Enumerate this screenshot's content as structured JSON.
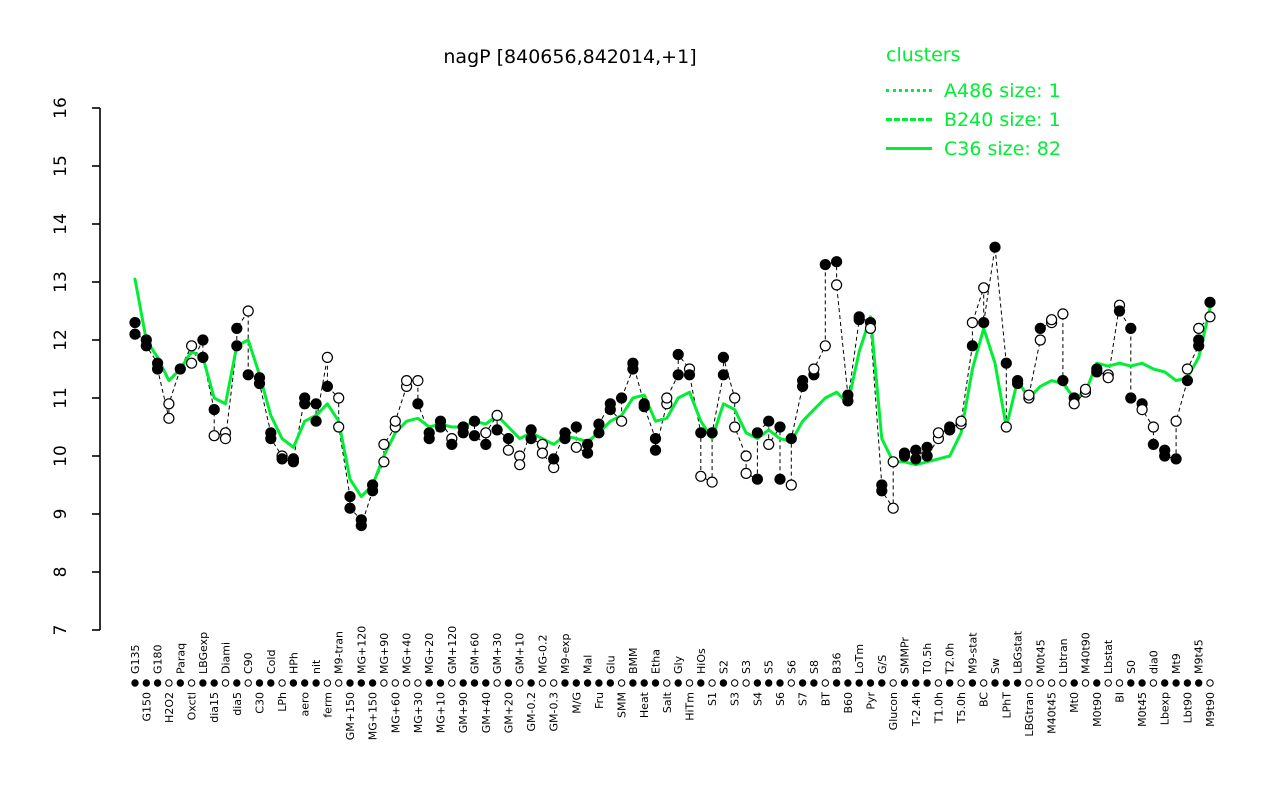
{
  "title": "nagP [840656,842014,+1]",
  "legend": {
    "title": "clusters",
    "items": [
      {
        "label": "A486 size: 1",
        "style": "dotted"
      },
      {
        "label": "B240 size: 1",
        "style": "dashed"
      },
      {
        "label": "C36 size: 82",
        "style": "solid"
      }
    ]
  },
  "colors": {
    "cluster_green": "#00ee33",
    "point_fill": "#000000",
    "point_open": "#ffffff",
    "axis": "#000000"
  },
  "chart_data": {
    "type": "line",
    "title": "nagP [840656,842014,+1]",
    "ylabel": "",
    "xlabel": "",
    "ylim": [
      7,
      16
    ],
    "y_ticks": [
      7,
      8,
      9,
      10,
      11,
      12,
      13,
      14,
      15,
      16
    ],
    "series": [
      {
        "name": "nagP expression per condition",
        "marker": "circle (open/filled)",
        "line": "dashed-black"
      },
      {
        "name": "C36 cluster mean",
        "line": "solid-green"
      }
    ],
    "conditions": [
      [
        "G135",
        [
          [
            12.3,
            0
          ],
          [
            12.1,
            0
          ]
        ],
        13.05
      ],
      [
        "G150",
        [
          [
            12.0,
            0
          ],
          [
            11.9,
            0
          ]
        ],
        12.0
      ],
      [
        "G180",
        [
          [
            11.6,
            0
          ],
          [
            11.5,
            0
          ]
        ],
        11.7
      ],
      [
        "H2O2",
        [
          [
            10.65,
            1
          ],
          [
            10.9,
            1
          ]
        ],
        11.3
      ],
      [
        "Paraq",
        [
          [
            11.5,
            0
          ]
        ],
        11.5
      ],
      [
        "Oxctl",
        [
          [
            11.9,
            1
          ],
          [
            11.6,
            1
          ]
        ],
        11.8
      ],
      [
        "LBGexp",
        [
          [
            12.0,
            0
          ],
          [
            11.7,
            0
          ]
        ],
        11.7
      ],
      [
        "dia15",
        [
          [
            10.8,
            0
          ],
          [
            10.35,
            1
          ]
        ],
        11.0
      ],
      [
        "Diami",
        [
          [
            10.4,
            1
          ],
          [
            10.3,
            1
          ]
        ],
        10.9
      ],
      [
        "dia5",
        [
          [
            11.9,
            0
          ],
          [
            12.2,
            0
          ]
        ],
        11.9
      ],
      [
        "C90",
        [
          [
            12.5,
            1
          ],
          [
            11.4,
            0
          ]
        ],
        12.0
      ],
      [
        "C30",
        [
          [
            11.35,
            0
          ],
          [
            11.25,
            0
          ]
        ],
        11.4
      ],
      [
        "Cold",
        [
          [
            10.4,
            0
          ],
          [
            10.3,
            0
          ]
        ],
        10.7
      ],
      [
        "LPh",
        [
          [
            10.0,
            1
          ],
          [
            9.95,
            0
          ]
        ],
        10.3
      ],
      [
        "HPh",
        [
          [
            9.9,
            0
          ],
          [
            9.95,
            0
          ]
        ],
        10.15
      ],
      [
        "aero",
        [
          [
            11.0,
            0
          ],
          [
            10.9,
            0
          ]
        ],
        10.6
      ],
      [
        "nit",
        [
          [
            10.9,
            0
          ],
          [
            10.6,
            0
          ]
        ],
        10.7
      ],
      [
        "ferm",
        [
          [
            11.7,
            1
          ],
          [
            11.2,
            0
          ]
        ],
        10.9
      ],
      [
        "M9-tran",
        [
          [
            11.0,
            1
          ],
          [
            10.5,
            1
          ]
        ],
        10.6
      ],
      [
        "GM+150",
        [
          [
            9.3,
            0
          ],
          [
            9.1,
            0
          ]
        ],
        9.6
      ],
      [
        "MG+120",
        [
          [
            8.9,
            0
          ],
          [
            8.8,
            0
          ]
        ],
        9.3
      ],
      [
        "MG+150",
        [
          [
            9.4,
            0
          ],
          [
            9.5,
            0
          ]
        ],
        9.5
      ],
      [
        "MG+90",
        [
          [
            9.9,
            1
          ],
          [
            10.2,
            1
          ]
        ],
        10.0
      ],
      [
        "MG+60",
        [
          [
            10.5,
            1
          ],
          [
            10.6,
            1
          ]
        ],
        10.4
      ],
      [
        "MG+40",
        [
          [
            11.2,
            1
          ],
          [
            11.3,
            1
          ]
        ],
        10.6
      ],
      [
        "MG+30",
        [
          [
            11.3,
            1
          ],
          [
            10.9,
            0
          ]
        ],
        10.65
      ],
      [
        "MG+20",
        [
          [
            10.4,
            0
          ],
          [
            10.3,
            0
          ]
        ],
        10.5
      ],
      [
        "MG+10",
        [
          [
            10.5,
            0
          ],
          [
            10.6,
            0
          ]
        ],
        10.55
      ],
      [
        "GM+120",
        [
          [
            10.3,
            1
          ],
          [
            10.2,
            0
          ]
        ],
        10.5
      ],
      [
        "GM+90",
        [
          [
            10.4,
            0
          ],
          [
            10.5,
            0
          ]
        ],
        10.5
      ],
      [
        "GM+60",
        [
          [
            10.6,
            0
          ],
          [
            10.35,
            0
          ]
        ],
        10.6
      ],
      [
        "GM+40",
        [
          [
            10.2,
            0
          ],
          [
            10.4,
            1
          ]
        ],
        10.55
      ],
      [
        "GM+30",
        [
          [
            10.7,
            1
          ],
          [
            10.45,
            0
          ]
        ],
        10.7
      ],
      [
        "GM+20",
        [
          [
            10.3,
            0
          ],
          [
            10.1,
            1
          ]
        ],
        10.5
      ],
      [
        "GM+10",
        [
          [
            10.0,
            1
          ],
          [
            9.85,
            1
          ]
        ],
        10.3
      ],
      [
        "GM-0.2",
        [
          [
            10.45,
            0
          ],
          [
            10.3,
            0
          ]
        ],
        10.4
      ],
      [
        "MG-0.2",
        [
          [
            10.2,
            1
          ],
          [
            10.05,
            1
          ]
        ],
        10.3
      ],
      [
        "GM-0.3",
        [
          [
            9.8,
            1
          ],
          [
            9.95,
            0
          ]
        ],
        10.2
      ],
      [
        "M9-exp",
        [
          [
            10.4,
            0
          ],
          [
            10.3,
            0
          ]
        ],
        10.35
      ],
      [
        "M/G",
        [
          [
            10.5,
            0
          ],
          [
            10.15,
            1
          ]
        ],
        10.3
      ],
      [
        "Mal",
        [
          [
            10.05,
            0
          ],
          [
            10.2,
            0
          ]
        ],
        10.25
      ],
      [
        "Fru",
        [
          [
            10.4,
            0
          ],
          [
            10.55,
            0
          ]
        ],
        10.4
      ],
      [
        "Glu",
        [
          [
            10.9,
            0
          ],
          [
            10.8,
            0
          ]
        ],
        10.6
      ],
      [
        "SMM",
        [
          [
            10.6,
            1
          ],
          [
            11.0,
            0
          ]
        ],
        10.7
      ],
      [
        "BMM",
        [
          [
            11.5,
            0
          ],
          [
            11.6,
            0
          ]
        ],
        11.0
      ],
      [
        "Heat",
        [
          [
            10.9,
            0
          ],
          [
            10.85,
            0
          ]
        ],
        11.05
      ],
      [
        "Etha",
        [
          [
            10.3,
            0
          ],
          [
            10.1,
            0
          ]
        ],
        10.6
      ],
      [
        "Salt",
        [
          [
            10.9,
            1
          ],
          [
            11.0,
            1
          ]
        ],
        10.65
      ],
      [
        "Gly",
        [
          [
            11.4,
            0
          ],
          [
            11.75,
            0
          ]
        ],
        11.0
      ],
      [
        "HiTm",
        [
          [
            11.5,
            1
          ],
          [
            11.4,
            0
          ]
        ],
        11.1
      ],
      [
        "HiOs",
        [
          [
            10.4,
            0
          ],
          [
            9.65,
            1
          ]
        ],
        10.6
      ],
      [
        "S1",
        [
          [
            9.55,
            1
          ],
          [
            10.4,
            0
          ]
        ],
        10.3
      ],
      [
        "S2",
        [
          [
            11.4,
            0
          ],
          [
            11.7,
            0
          ]
        ],
        10.9
      ],
      [
        "S3",
        [
          [
            11.0,
            1
          ],
          [
            10.5,
            1
          ]
        ],
        10.8
      ],
      [
        "S3",
        [
          [
            10.0,
            1
          ],
          [
            9.7,
            1
          ]
        ],
        10.4
      ],
      [
        "S4",
        [
          [
            9.6,
            0
          ],
          [
            10.4,
            0
          ]
        ],
        10.3
      ],
      [
        "S5",
        [
          [
            10.6,
            0
          ],
          [
            10.2,
            1
          ]
        ],
        10.45
      ],
      [
        "S6",
        [
          [
            10.5,
            0
          ],
          [
            9.6,
            0
          ]
        ],
        10.3
      ],
      [
        "S6",
        [
          [
            9.5,
            1
          ],
          [
            10.3,
            0
          ]
        ],
        10.25
      ],
      [
        "S7",
        [
          [
            11.2,
            0
          ],
          [
            11.3,
            0
          ]
        ],
        10.6
      ],
      [
        "S8",
        [
          [
            11.4,
            0
          ],
          [
            11.5,
            1
          ]
        ],
        10.8
      ],
      [
        "BT",
        [
          [
            11.9,
            1
          ],
          [
            13.3,
            0
          ]
        ],
        11.0
      ],
      [
        "B36",
        [
          [
            13.35,
            0
          ],
          [
            12.95,
            1
          ]
        ],
        11.1
      ],
      [
        "B60",
        [
          [
            11.05,
            0
          ],
          [
            10.95,
            0
          ]
        ],
        10.9
      ],
      [
        "LoTm",
        [
          [
            12.35,
            0
          ],
          [
            12.4,
            0
          ]
        ],
        11.8
      ],
      [
        "Pyr",
        [
          [
            12.3,
            0
          ],
          [
            12.2,
            1
          ]
        ],
        12.4
      ],
      [
        "G/S",
        [
          [
            9.5,
            0
          ],
          [
            9.4,
            0
          ]
        ],
        10.3
      ],
      [
        "Glucon",
        [
          [
            9.1,
            1
          ],
          [
            9.9,
            1
          ]
        ],
        9.9
      ],
      [
        "SMMPr",
        [
          [
            10.0,
            0
          ],
          [
            10.05,
            0
          ]
        ],
        9.9
      ],
      [
        "T-2.4h",
        [
          [
            10.1,
            0
          ],
          [
            9.95,
            0
          ]
        ],
        9.85
      ],
      [
        "T0.5h",
        [
          [
            10.15,
            0
          ],
          [
            10.0,
            0
          ]
        ],
        9.9
      ],
      [
        "T1.0h",
        [
          [
            10.3,
            1
          ],
          [
            10.4,
            1
          ]
        ],
        9.95
      ],
      [
        "T2.0h",
        [
          [
            10.45,
            0
          ],
          [
            10.5,
            0
          ]
        ],
        10.0
      ],
      [
        "T5.0h",
        [
          [
            10.55,
            1
          ],
          [
            10.6,
            1
          ]
        ],
        10.4
      ],
      [
        "M9-stat",
        [
          [
            11.9,
            0
          ],
          [
            12.3,
            1
          ]
        ],
        11.5
      ],
      [
        "BC",
        [
          [
            12.9,
            1
          ],
          [
            12.3,
            0
          ]
        ],
        12.2
      ],
      [
        "Sw",
        [
          [
            13.6,
            0
          ]
        ],
        11.6
      ],
      [
        "LPhT",
        [
          [
            11.6,
            0
          ],
          [
            10.5,
            1
          ]
        ],
        10.5
      ],
      [
        "LBGstat",
        [
          [
            11.3,
            0
          ],
          [
            11.25,
            0
          ]
        ],
        11.3
      ],
      [
        "LBGtran",
        [
          [
            11.0,
            1
          ],
          [
            11.05,
            1
          ]
        ],
        11.0
      ],
      [
        "M0t45",
        [
          [
            12.0,
            1
          ],
          [
            12.2,
            0
          ]
        ],
        11.2
      ],
      [
        "M40t45",
        [
          [
            12.3,
            1
          ],
          [
            12.35,
            1
          ]
        ],
        11.3
      ],
      [
        "Lbtran",
        [
          [
            12.45,
            1
          ],
          [
            11.3,
            0
          ]
        ],
        11.25
      ],
      [
        "Mt0",
        [
          [
            11.0,
            0
          ],
          [
            10.9,
            1
          ]
        ],
        11.0
      ],
      [
        "M40t90",
        [
          [
            11.1,
            1
          ],
          [
            11.15,
            1
          ]
        ],
        11.1
      ],
      [
        "M0t90",
        [
          [
            11.5,
            0
          ],
          [
            11.45,
            0
          ]
        ],
        11.6
      ],
      [
        "Lbstat",
        [
          [
            11.4,
            1
          ],
          [
            11.35,
            1
          ]
        ],
        11.55
      ],
      [
        "BI",
        [
          [
            12.6,
            1
          ],
          [
            12.5,
            0
          ]
        ],
        11.6
      ],
      [
        "S0",
        [
          [
            12.2,
            0
          ],
          [
            11.0,
            0
          ]
        ],
        11.55
      ],
      [
        "M0t45",
        [
          [
            10.9,
            0
          ],
          [
            10.8,
            1
          ]
        ],
        11.6
      ],
      [
        "dia0",
        [
          [
            10.5,
            1
          ],
          [
            10.2,
            0
          ]
        ],
        11.5
      ],
      [
        "Lbexp",
        [
          [
            10.1,
            0
          ],
          [
            10.0,
            0
          ]
        ],
        11.45
      ],
      [
        "Mt9",
        [
          [
            9.95,
            0
          ],
          [
            10.6,
            1
          ]
        ],
        11.3
      ],
      [
        "Lbt90",
        [
          [
            11.3,
            0
          ],
          [
            11.5,
            1
          ]
        ],
        11.35
      ],
      [
        "M9t45",
        [
          [
            11.9,
            0
          ],
          [
            12.0,
            0
          ],
          [
            12.2,
            1
          ]
        ],
        11.7
      ],
      [
        "M9t90",
        [
          [
            12.4,
            1
          ],
          [
            12.65,
            0
          ]
        ],
        12.55
      ]
    ]
  }
}
